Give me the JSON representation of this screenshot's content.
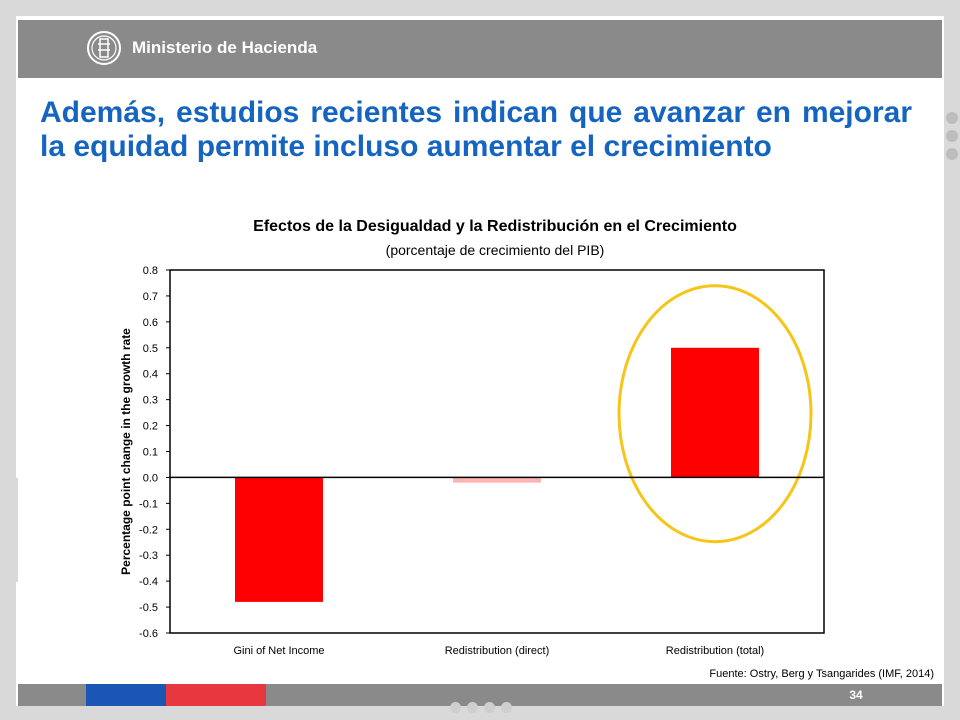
{
  "header": {
    "ministry_name": "Ministerio de Hacienda"
  },
  "slide": {
    "title": "Además, estudios recientes indican que avanzar en mejorar la equidad permite incluso aumentar el crecimiento",
    "page_number": "34",
    "source": "Fuente: Ostry, Berg y Tsangarides (IMF, 2014)"
  },
  "colors": {
    "title": "#1565c0",
    "bar": "#ff0000",
    "bar_small": "#ffb3b3",
    "highlight_circle": "#f5c518",
    "footer_blue": "#1a56b4",
    "footer_red": "#e8383f"
  },
  "chart_data": {
    "type": "bar",
    "title": "Efectos de la Desigualdad y la Redistribución en el Crecimiento",
    "subtitle": "(porcentaje de crecimiento del PIB)",
    "categories": [
      "Gini of Net Income",
      "Redistribution (direct)",
      "Redistribution (total)"
    ],
    "values": [
      -0.48,
      -0.02,
      0.5
    ],
    "xlabel": "",
    "ylabel": "Percentage point change in the growth rate",
    "ylim": [
      -0.6,
      0.8
    ],
    "yticks": [
      "0.8",
      "0.7",
      "0.6",
      "0.5",
      "0.4",
      "0.3",
      "0.2",
      "0.1",
      "0.0",
      "-0.1",
      "-0.2",
      "-0.3",
      "-0.4",
      "-0.5",
      "-0.6"
    ],
    "highlighted_category": "Redistribution (total)",
    "grid": false,
    "legend": "none"
  }
}
